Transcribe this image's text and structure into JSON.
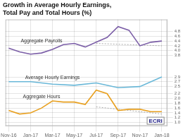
{
  "chart_data": {
    "type": "line",
    "title": [
      "Growth in Average Hourly Earnings,",
      "Total Pay and Total Hours (%)"
    ],
    "xlim": [
      -0.3,
      14.5
    ],
    "xticks": [
      {
        "value": 0,
        "label": "Nov-16"
      },
      {
        "value": 2,
        "label": "Jan-17"
      },
      {
        "value": 4,
        "label": "Mar-17"
      },
      {
        "value": 6,
        "label": "May-17"
      },
      {
        "value": 8,
        "label": "Jul-17"
      },
      {
        "value": 10,
        "label": "Sep-17"
      },
      {
        "value": 12,
        "label": "Nov-17"
      },
      {
        "value": 14,
        "label": "Jan-18"
      }
    ],
    "ylim": [
      0.85,
      5.3
    ],
    "yticks": [
      {
        "value": 1.0,
        "label": "1.0"
      },
      1.2,
      1.4,
      1.6,
      1.8,
      {
        "value": 2.0,
        "label": "2.0"
      },
      2.2,
      2.5,
      2.7,
      2.9,
      3.8,
      {
        "value": 4.0,
        "label": "4.0"
      },
      4.2,
      4.4,
      4.6,
      4.8
    ],
    "grid": true,
    "series": [
      {
        "name": "Average Hourly Earnings",
        "color": "#6ab8d8",
        "x": [
          0,
          2,
          4,
          6,
          8,
          10,
          12,
          14
        ],
        "values": [
          2.7,
          2.7,
          2.6,
          2.55,
          2.65,
          2.45,
          2.5,
          2.9
        ]
      },
      {
        "name": "Aggregate Payrolls",
        "color": "#7b5ea7",
        "x": [
          0,
          1,
          2,
          3,
          4,
          5,
          6,
          7,
          8,
          9,
          10,
          11,
          12,
          13,
          14
        ],
        "values": [
          4.1,
          3.95,
          3.85,
          3.9,
          4.05,
          4.25,
          4.3,
          4.15,
          4.35,
          4.55,
          5.0,
          4.85,
          4.2,
          4.35,
          4.4
        ]
      },
      {
        "name": "Aggregate Hours",
        "color": "#e8a020",
        "x": [
          0,
          1,
          2,
          3,
          4,
          5,
          6,
          7,
          8,
          9,
          10,
          11,
          12,
          13,
          14
        ],
        "values": [
          1.5,
          1.35,
          1.4,
          1.6,
          1.9,
          1.85,
          1.85,
          1.75,
          2.35,
          2.2,
          1.5,
          1.55,
          1.55,
          1.45,
          1.45
        ]
      },
      {
        "color": "#aaaaaa",
        "line_style": "dotted",
        "x": [
          8,
          14
        ],
        "values": [
          4.3,
          4.2
        ]
      },
      {
        "color": "#aaaaaa",
        "line_style": "dotted",
        "x": [
          8,
          14
        ],
        "values": [
          1.65,
          1.35
        ]
      }
    ],
    "annotations": [
      {
        "text": "ECRI"
      }
    ]
  }
}
